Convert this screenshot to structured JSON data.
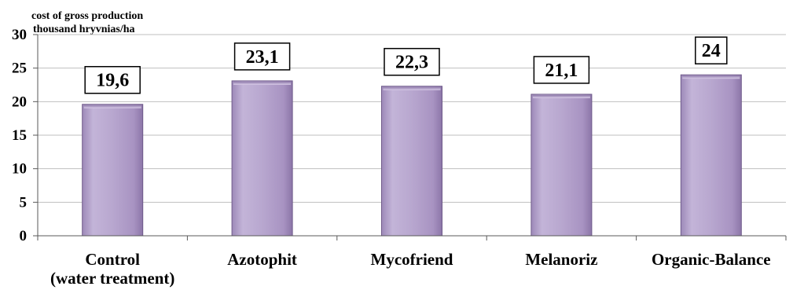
{
  "chart_data": {
    "type": "bar",
    "ylabel_lines": [
      "cost of gross production",
      "thousand hryvnias/ha"
    ],
    "categories": [
      [
        "Control",
        "(water treatment)"
      ],
      [
        "Azotophit"
      ],
      [
        "Mycofriend"
      ],
      [
        "Melanoriz"
      ],
      [
        "Organic-Balance"
      ]
    ],
    "values": [
      19.6,
      23.1,
      22.3,
      21.1,
      24
    ],
    "data_labels": [
      "19,6",
      "23,1",
      "22,3",
      "21,1",
      "24"
    ],
    "yticks": [
      0,
      5,
      10,
      15,
      20,
      25,
      30
    ],
    "ylim": [
      0,
      30
    ],
    "grid": true,
    "bar_color": "#b7a6cc",
    "bar_edge_color": "#6f5a8a"
  }
}
